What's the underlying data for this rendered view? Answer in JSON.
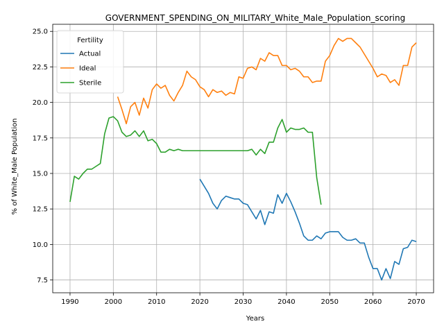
{
  "chart_data": {
    "type": "line",
    "title": "GOVERNMENT_SPENDING_ON_MILITARY_White_Male_Population_scoring",
    "xlabel": "Years",
    "ylabel": "% of White_Male Population",
    "xlim": [
      1986,
      2074
    ],
    "ylim": [
      6.6,
      25.5
    ],
    "xticks": [
      "1990",
      "2000",
      "2010",
      "2020",
      "2030",
      "2040",
      "2050",
      "2060",
      "2070"
    ],
    "yticks": [
      "7.5",
      "10.0",
      "12.5",
      "15.0",
      "17.5",
      "20.0",
      "22.5",
      "25.0"
    ],
    "grid": true,
    "legend": {
      "title": "Fertility",
      "placement": "top-left"
    },
    "series": [
      {
        "name": "Actual",
        "color": "#1f77b4",
        "x": [
          2020,
          2021,
          2022,
          2023,
          2024,
          2025,
          2026,
          2027,
          2028,
          2029,
          2030,
          2031,
          2032,
          2033,
          2034,
          2035,
          2036,
          2037,
          2038,
          2039,
          2040,
          2041,
          2042,
          2043,
          2044,
          2045,
          2046,
          2047,
          2048,
          2049,
          2050,
          2051,
          2052,
          2053,
          2054,
          2055,
          2056,
          2057,
          2058,
          2059,
          2060,
          2061,
          2062,
          2063,
          2064,
          2065,
          2066,
          2067,
          2068,
          2069,
          2070
        ],
        "y": [
          14.6,
          14.1,
          13.6,
          12.9,
          12.5,
          13.1,
          13.4,
          13.3,
          13.2,
          13.2,
          12.9,
          12.8,
          12.3,
          11.8,
          12.4,
          11.4,
          12.3,
          12.2,
          13.5,
          12.9,
          13.6,
          13.0,
          12.3,
          11.5,
          10.6,
          10.3,
          10.3,
          10.6,
          10.4,
          10.8,
          10.9,
          10.9,
          10.9,
          10.5,
          10.3,
          10.3,
          10.4,
          10.1,
          10.1,
          9.1,
          8.3,
          8.3,
          7.5,
          8.3,
          7.6,
          8.8,
          8.6,
          9.7,
          9.8,
          10.3,
          10.2
        ]
      },
      {
        "name": "Ideal",
        "color": "#ff7f0e",
        "x": [
          2001,
          2002,
          2003,
          2004,
          2005,
          2006,
          2007,
          2008,
          2009,
          2010,
          2011,
          2012,
          2013,
          2014,
          2015,
          2016,
          2017,
          2018,
          2019,
          2020,
          2021,
          2022,
          2023,
          2024,
          2025,
          2026,
          2027,
          2028,
          2029,
          2030,
          2031,
          2032,
          2033,
          2034,
          2035,
          2036,
          2037,
          2038,
          2039,
          2040,
          2041,
          2042,
          2043,
          2044,
          2045,
          2046,
          2047,
          2048,
          2049,
          2050,
          2051,
          2052,
          2053,
          2054,
          2055,
          2056,
          2057,
          2058,
          2059,
          2060,
          2061,
          2062,
          2063,
          2064,
          2065,
          2066,
          2067,
          2068,
          2069,
          2070
        ],
        "y": [
          20.4,
          19.5,
          18.5,
          19.7,
          20.0,
          19.1,
          20.3,
          19.6,
          20.9,
          21.3,
          21.0,
          21.2,
          20.5,
          20.1,
          20.7,
          21.2,
          22.2,
          21.8,
          21.6,
          21.1,
          20.9,
          20.4,
          20.9,
          20.7,
          20.8,
          20.5,
          20.7,
          20.6,
          21.8,
          21.7,
          22.4,
          22.5,
          22.3,
          23.1,
          22.9,
          23.5,
          23.3,
          23.3,
          22.6,
          22.6,
          22.3,
          22.4,
          22.2,
          21.8,
          21.8,
          21.4,
          21.5,
          21.5,
          22.9,
          23.3,
          24.0,
          24.5,
          24.3,
          24.5,
          24.5,
          24.2,
          23.9,
          23.4,
          22.9,
          22.4,
          21.8,
          22.0,
          21.9,
          21.4,
          21.6,
          21.2,
          22.6,
          22.6,
          23.9,
          24.2
        ]
      },
      {
        "name": "Sterile",
        "color": "#2ca02c",
        "x": [
          1990,
          1991,
          1992,
          1993,
          1994,
          1995,
          1996,
          1997,
          1998,
          1999,
          2000,
          2001,
          2002,
          2003,
          2004,
          2005,
          2006,
          2007,
          2008,
          2009,
          2010,
          2011,
          2012,
          2013,
          2014,
          2015,
          2016,
          2017,
          2018,
          2019,
          2020,
          2021,
          2022,
          2023,
          2024,
          2025,
          2026,
          2027,
          2028,
          2029,
          2030,
          2031,
          2032,
          2033,
          2034,
          2035,
          2036,
          2037,
          2038,
          2039,
          2040,
          2041,
          2042,
          2043,
          2044,
          2045,
          2046,
          2047,
          2048
        ],
        "y": [
          13.0,
          14.8,
          14.6,
          15.0,
          15.3,
          15.3,
          15.5,
          15.7,
          17.8,
          18.9,
          19.0,
          18.7,
          17.9,
          17.6,
          17.7,
          18.0,
          17.6,
          18.0,
          17.3,
          17.4,
          17.1,
          16.5,
          16.5,
          16.7,
          16.6,
          16.7,
          16.6,
          16.6,
          16.6,
          16.6,
          16.6,
          16.6,
          16.6,
          16.6,
          16.6,
          16.6,
          16.6,
          16.6,
          16.6,
          16.6,
          16.6,
          16.6,
          16.7,
          16.3,
          16.7,
          16.4,
          17.2,
          17.2,
          18.2,
          18.8,
          17.9,
          18.2,
          18.1,
          18.1,
          18.2,
          17.9,
          17.9,
          14.7,
          12.8
        ]
      }
    ]
  }
}
